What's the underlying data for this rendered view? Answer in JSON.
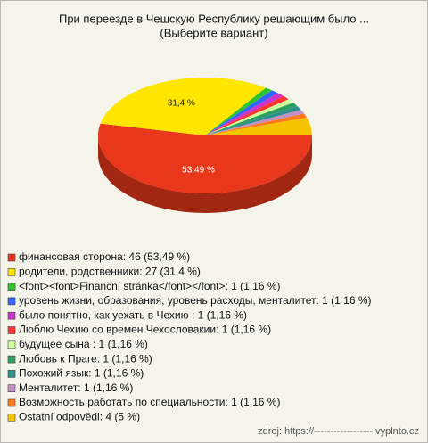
{
  "chart_data": {
    "type": "pie3d",
    "title": "При переезде в Чешскую Республику решающим было ...",
    "subtitle": "(Выберите вариант)",
    "categories": [
      "финансовая сторона: 46 (53,49 %)",
      "родители, родственники: 27 (31,4 %)",
      "<font><font>Finanční stránka</font></font>: 1 (1,16 %)",
      "уровень жизни, образования, уровень расходы, менталитет: 1 (1,16 %)",
      "было понятно, как уехать в Чехию : 1 (1,16 %)",
      "Люблю Чехию со времен Чехословакии: 1 (1,16 %)",
      "будущее сына : 1 (1,16 %)",
      "Любовь к Праге: 1 (1,16 %)",
      "Похожий язык: 1 (1,16 %)",
      "Менталитет: 1 (1,16 %)",
      "Возможность работать по специальности: 1 (1,16 %)",
      "Ostatní odpovědi: 4 (5 %)"
    ],
    "values": [
      53.49,
      31.4,
      1.16,
      1.16,
      1.16,
      1.16,
      1.16,
      1.16,
      1.16,
      1.16,
      1.16,
      5
    ],
    "value_labels": [
      "53,49 %",
      "31,4 %",
      null,
      null,
      null,
      null,
      null,
      null,
      null,
      null,
      null,
      null
    ],
    "colors": [
      "#e8371a",
      "#ffe600",
      "#2fc42f",
      "#3366ff",
      "#cc33cc",
      "#ff3333",
      "#ccff99",
      "#2e9e5e",
      "#2e8f8f",
      "#c48fc4",
      "#ff7a1a",
      "#f5c400"
    ],
    "source": "zdroj: https://------------------.vyplnto.cz"
  }
}
